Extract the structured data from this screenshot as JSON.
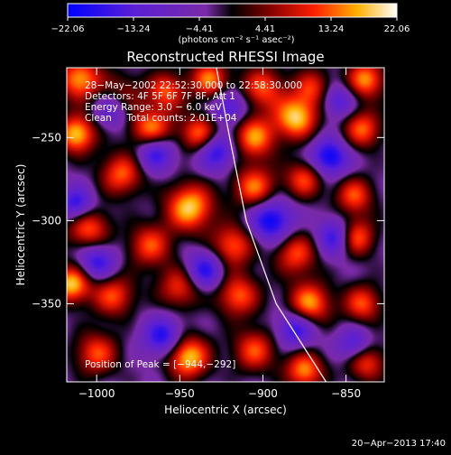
{
  "chart_data": {
    "type": "heatmap",
    "title": "Reconstructed RHESSI Image",
    "xlabel": "Heliocentric X (arcsec)",
    "ylabel": "Heliocentric Y (arcsec)",
    "xlim": [
      -1018,
      -827
    ],
    "ylim": [
      -397,
      -208
    ],
    "x_ticks": [
      -1000,
      -950,
      -900,
      -850
    ],
    "x_tick_labels": [
      "−1000",
      "−950",
      "−900",
      "−850"
    ],
    "y_ticks": [
      -250,
      -300,
      -350
    ],
    "y_tick_labels": [
      "−250",
      "−300",
      "−350"
    ],
    "colorbar": {
      "min": -22.06,
      "max": 22.06,
      "tick_values": [
        -22.06,
        -13.24,
        -4.41,
        4.41,
        13.24,
        22.06
      ],
      "tick_labels": [
        "−22.06",
        "−13.24",
        "−4.41",
        "4.41",
        "13.24",
        "22.06"
      ],
      "unit_label": "(photons cm⁻² s⁻¹ asec⁻²)"
    },
    "annotations": [
      "28−May−2002 22:52:30.000 to 22:58:30.000",
      "Detectors: 4F 5F 6F 7F 8F, Att 1",
      "Energy Range: 3.0 − 6.0 keV",
      "Clean     Total counts: 2.01E+04"
    ],
    "peak": {
      "label": "Position of Peak = [−944,−292]",
      "x": -944,
      "y": -292
    },
    "limb_curve": [
      [
        -928,
        -208
      ],
      [
        -920,
        -250
      ],
      [
        -910,
        -300
      ],
      [
        -892,
        -350
      ],
      [
        -862,
        -397
      ]
    ],
    "sources": [
      {
        "x": -1010,
        "y": -215,
        "a": 0.9,
        "s": 9
      },
      {
        "x": -985,
        "y": -225,
        "a": 0.55,
        "s": 9
      },
      {
        "x": -958,
        "y": -222,
        "a": 0.7,
        "s": 8
      },
      {
        "x": -932,
        "y": -215,
        "a": 0.8,
        "s": 8
      },
      {
        "x": -900,
        "y": -220,
        "a": 0.7,
        "s": 9
      },
      {
        "x": -870,
        "y": -220,
        "a": 0.6,
        "s": 8
      },
      {
        "x": -838,
        "y": -215,
        "a": 0.85,
        "s": 8
      },
      {
        "x": -1012,
        "y": -248,
        "a": 1.0,
        "s": 8
      },
      {
        "x": -967,
        "y": -246,
        "a": 0.95,
        "s": 9
      },
      {
        "x": -938,
        "y": -248,
        "a": 0.8,
        "s": 8
      },
      {
        "x": -905,
        "y": -250,
        "a": 0.85,
        "s": 9
      },
      {
        "x": -880,
        "y": -238,
        "a": 1.0,
        "s": 9
      },
      {
        "x": -840,
        "y": -245,
        "a": 0.75,
        "s": 8
      },
      {
        "x": -985,
        "y": -272,
        "a": 0.75,
        "s": 9
      },
      {
        "x": -944,
        "y": -292,
        "a": 1.0,
        "s": 10
      },
      {
        "x": -905,
        "y": -280,
        "a": 0.8,
        "s": 9
      },
      {
        "x": -875,
        "y": -275,
        "a": 0.7,
        "s": 8
      },
      {
        "x": -845,
        "y": -285,
        "a": 0.7,
        "s": 8
      },
      {
        "x": -1005,
        "y": -305,
        "a": 0.75,
        "s": 9
      },
      {
        "x": -968,
        "y": -315,
        "a": 0.7,
        "s": 9
      },
      {
        "x": -918,
        "y": -315,
        "a": 0.75,
        "s": 9
      },
      {
        "x": -880,
        "y": -320,
        "a": 0.7,
        "s": 9
      },
      {
        "x": -845,
        "y": -310,
        "a": 0.95,
        "s": 8
      },
      {
        "x": -1015,
        "y": -338,
        "a": 1.0,
        "s": 8
      },
      {
        "x": -990,
        "y": -345,
        "a": 0.7,
        "s": 9
      },
      {
        "x": -950,
        "y": -340,
        "a": 0.65,
        "s": 9
      },
      {
        "x": -915,
        "y": -345,
        "a": 0.75,
        "s": 9
      },
      {
        "x": -872,
        "y": -350,
        "a": 0.9,
        "s": 9
      },
      {
        "x": -840,
        "y": -350,
        "a": 0.7,
        "s": 8
      },
      {
        "x": -1000,
        "y": -380,
        "a": 0.7,
        "s": 9
      },
      {
        "x": -945,
        "y": -382,
        "a": 1.0,
        "s": 9
      },
      {
        "x": -905,
        "y": -378,
        "a": 0.7,
        "s": 9
      },
      {
        "x": -875,
        "y": -390,
        "a": 0.85,
        "s": 8
      },
      {
        "x": -838,
        "y": -385,
        "a": 0.7,
        "s": 8
      },
      {
        "x": -965,
        "y": -258,
        "a": -0.85,
        "s": 8
      },
      {
        "x": -928,
        "y": -258,
        "a": -0.75,
        "s": 8
      },
      {
        "x": -895,
        "y": -300,
        "a": -0.85,
        "s": 9
      },
      {
        "x": -935,
        "y": -330,
        "a": -0.75,
        "s": 8
      },
      {
        "x": -1000,
        "y": -325,
        "a": -0.7,
        "s": 8
      },
      {
        "x": -960,
        "y": -370,
        "a": -0.75,
        "s": 8
      },
      {
        "x": -855,
        "y": -310,
        "a": -0.85,
        "s": 8
      },
      {
        "x": -860,
        "y": -262,
        "a": -0.85,
        "s": 8
      },
      {
        "x": -990,
        "y": -232,
        "a": -0.6,
        "s": 8
      },
      {
        "x": -1012,
        "y": -290,
        "a": -0.7,
        "s": 7
      },
      {
        "x": -880,
        "y": -365,
        "a": -0.7,
        "s": 8
      },
      {
        "x": -920,
        "y": -232,
        "a": -0.6,
        "s": 7
      },
      {
        "x": -855,
        "y": -228,
        "a": -0.55,
        "s": 7
      },
      {
        "x": -845,
        "y": -375,
        "a": -0.6,
        "s": 7
      }
    ]
  },
  "footer": {
    "timestamp": "20−Apr−2013 17:40"
  }
}
